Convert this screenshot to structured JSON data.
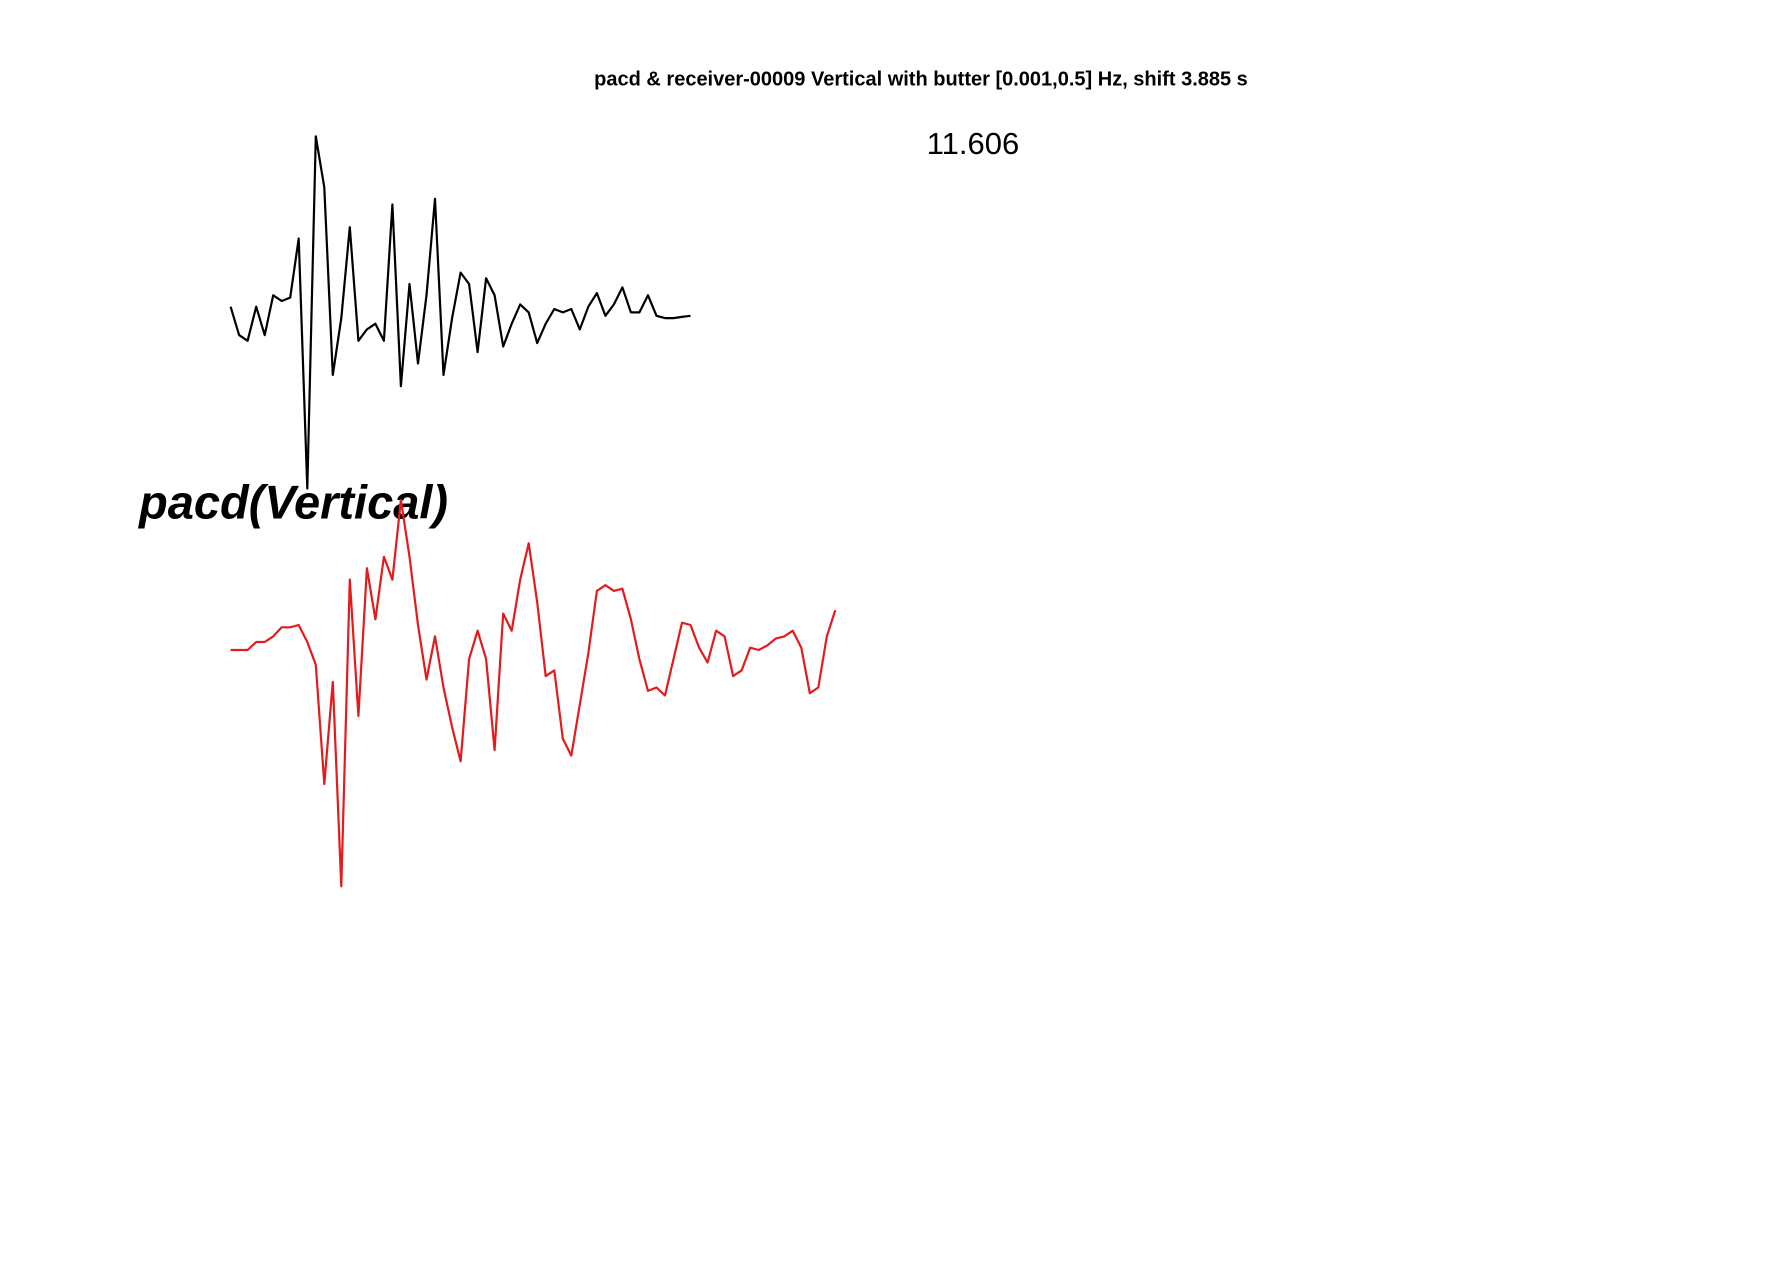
{
  "chart_data": {
    "type": "line",
    "title": "pacd & receiver-00009 Vertical with butter [0.001,0.5] Hz, shift 3.885 s",
    "annotation": "11.606",
    "trace_label": "pacd(Vertical)",
    "xlim": [
      0,
      80
    ],
    "ylim": [
      -2.5,
      2.5
    ],
    "series": [
      {
        "color": "#000000",
        "values": [
          0,
          -0.25,
          -0.3,
          0,
          -0.25,
          0.1,
          0.05,
          0.08,
          0.6,
          -1.6,
          1.5,
          1.05,
          -0.6,
          -0.1,
          0.7,
          -0.3,
          -0.2,
          -0.15,
          -0.3,
          0.9,
          -0.7,
          0.2,
          -0.5,
          0.1,
          0.95,
          -0.6,
          -0.1,
          0.3,
          0.2,
          -0.4,
          0.25,
          0.1,
          -0.35,
          -0.15,
          0.02,
          -0.05,
          -0.32,
          -0.15,
          -0.02,
          -0.05,
          -0.02,
          -0.2,
          0,
          0.12,
          -0.08,
          0.02,
          0.17,
          -0.05,
          -0.05,
          0.1,
          -0.08,
          -0.1,
          -0.1,
          -0.09,
          -0.08
        ]
      },
      {
        "color": "#e41a1c",
        "values": [
          0,
          0,
          0,
          0.07,
          0.07,
          0.12,
          0.2,
          0.2,
          0.22,
          0.07,
          -0.13,
          -1.18,
          -0.28,
          -2.08,
          0.62,
          -0.58,
          0.72,
          0.27,
          0.82,
          0.62,
          1.32,
          0.82,
          0.22,
          -0.26,
          0.12,
          -0.33,
          -0.68,
          -0.98,
          -0.08,
          0.17,
          -0.08,
          -0.88,
          0.32,
          0.17,
          0.62,
          0.94,
          0.42,
          -0.23,
          -0.18,
          -0.78,
          -0.93,
          -0.48,
          -0.03,
          0.52,
          0.57,
          0.52,
          0.54,
          0.27,
          -0.08,
          -0.36,
          -0.33,
          -0.4,
          -0.08,
          0.24,
          0.22,
          0.02,
          -0.11,
          0.17,
          0.12,
          -0.23,
          -0.18,
          0.02,
          0,
          0.04,
          0.1,
          0.12,
          0.17,
          0.02,
          -0.38,
          -0.33,
          0.12,
          0.35
        ]
      }
    ]
  }
}
